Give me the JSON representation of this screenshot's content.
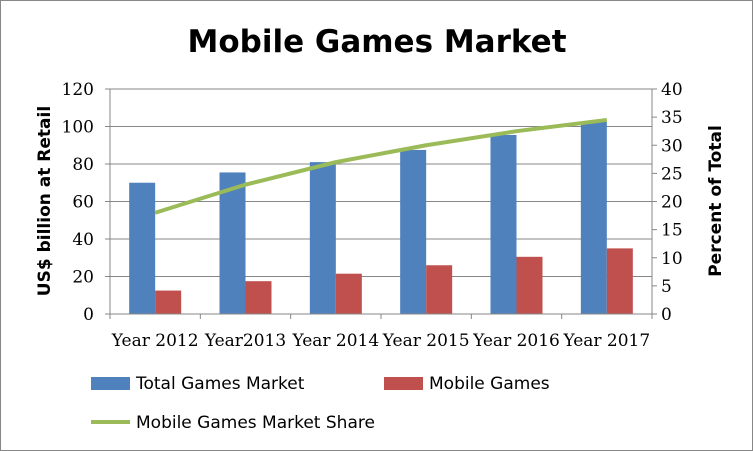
{
  "chart_data": {
    "type": "bar",
    "title": "Mobile Games Market",
    "categories": [
      "Year 2012",
      "Year2013",
      "Year 2014",
      "Year 2015",
      "Year 2016",
      "Year 2017"
    ],
    "series": [
      {
        "name": "Total Games Market",
        "type": "bar",
        "axis": "left",
        "color": "#4f81bd",
        "values": [
          70,
          75.5,
          81,
          87.5,
          95.5,
          102.5
        ]
      },
      {
        "name": "Mobile Games",
        "type": "bar",
        "axis": "left",
        "color": "#c0504d",
        "values": [
          12.5,
          17.5,
          21.5,
          26,
          30.5,
          35
        ]
      },
      {
        "name": "Mobile Games Market Share",
        "type": "line",
        "axis": "right",
        "color": "#9bbb59",
        "values": [
          18,
          23,
          27,
          30,
          32.5,
          34.5
        ]
      }
    ],
    "ylabel": "US$ billion at Retail",
    "y2label": "Percent of Total",
    "ylim": [
      0,
      120
    ],
    "y2lim": [
      0,
      40
    ],
    "yticks": [
      0,
      20,
      40,
      60,
      80,
      100,
      120
    ],
    "y2ticks": [
      0,
      5,
      10,
      15,
      20,
      25,
      30,
      35,
      40
    ],
    "grid": "horizontal",
    "legend_position": "bottom"
  }
}
